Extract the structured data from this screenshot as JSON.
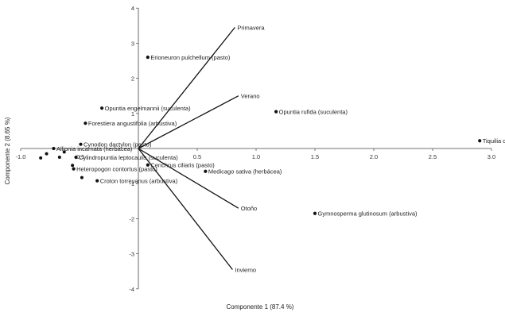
{
  "chart_data": {
    "type": "scatter",
    "xlabel": "Componente 1 (87.4 %)",
    "ylabel": "Componente 2 (8.65 %)",
    "xlim": [
      -1.0,
      3.0
    ],
    "ylim": [
      -4,
      4
    ],
    "x_ticks": [
      "-1.0",
      "-0.5",
      "0.5",
      "1.0",
      "1.5",
      "2.0",
      "2.5",
      "3.0"
    ],
    "x_tick_values": [
      -1.0,
      -0.5,
      0.5,
      1.0,
      1.5,
      2.0,
      2.5,
      3.0
    ],
    "y_ticks": [
      "4",
      "3",
      "2",
      "1",
      "-1",
      "-2",
      "-3",
      "-4"
    ],
    "y_tick_values": [
      4,
      3,
      2,
      1,
      -1,
      -2,
      -3,
      -4
    ],
    "grid": false,
    "points": [
      {
        "label": "Erioneuron pulchellum (pasto)",
        "x": 0.08,
        "y": 2.6
      },
      {
        "label": "Opuntia engelmannii (suculenta)",
        "x": -0.31,
        "y": 1.15
      },
      {
        "label": "Forestiera angustifolia (arbustiva)",
        "x": -0.45,
        "y": 0.72
      },
      {
        "label": "Cynodon dactylon (pasto)",
        "x": -0.49,
        "y": 0.12
      },
      {
        "label": "Allionia incarnata (herbácea)",
        "x": -0.72,
        "y": 0.0
      },
      {
        "label": "Cylindropuntia leptocaulis (suculenta)",
        "x": -0.53,
        "y": -0.25
      },
      {
        "label": "Heteropogon contortus (pasto)",
        "x": -0.55,
        "y": -0.58
      },
      {
        "label": "Croton torreyanus (arbustiva)",
        "x": -0.35,
        "y": -0.92
      },
      {
        "label": "Cenchrus ciliaris (pasto)",
        "x": 0.08,
        "y": -0.47
      },
      {
        "label": "Medicago sativa (herbácea)",
        "x": 0.57,
        "y": -0.65
      },
      {
        "label": "Opuntia rufida (suculenta)",
        "x": 1.17,
        "y": 1.05
      },
      {
        "label": "Tiquilia canescens (arbustiva)",
        "x": 2.9,
        "y": 0.22
      },
      {
        "label": "Gymnosperma glutinosum (arbustiva)",
        "x": 1.5,
        "y": -1.85
      }
    ],
    "unlabeled_points": [
      {
        "x": -0.63,
        "y": -0.1
      },
      {
        "x": -0.67,
        "y": -0.25
      },
      {
        "x": -0.56,
        "y": -0.48
      },
      {
        "x": -0.48,
        "y": -0.83
      },
      {
        "x": -0.78,
        "y": -0.15
      },
      {
        "x": -0.83,
        "y": -0.27
      }
    ],
    "vectors": [
      {
        "label": "Primavera",
        "x": 0.82,
        "y": 3.45
      },
      {
        "label": "Verano",
        "x": 0.85,
        "y": 1.5
      },
      {
        "label": "Otoño",
        "x": 0.85,
        "y": -1.7
      },
      {
        "label": "Invierno",
        "x": 0.8,
        "y": -3.45
      }
    ]
  }
}
